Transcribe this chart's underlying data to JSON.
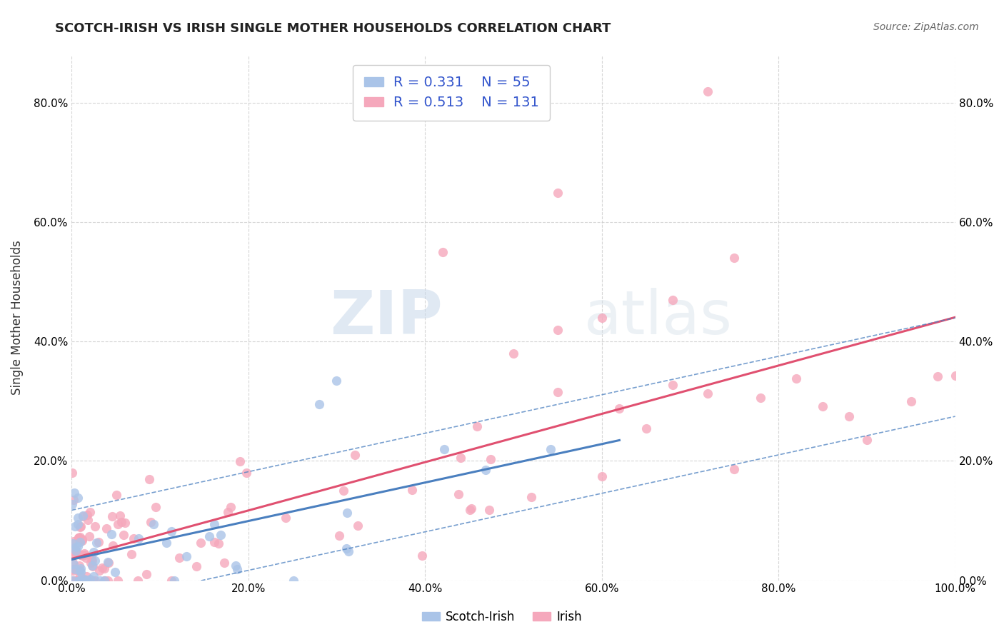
{
  "title": "SCOTCH-IRISH VS IRISH SINGLE MOTHER HOUSEHOLDS CORRELATION CHART",
  "source_text": "Source: ZipAtlas.com",
  "ylabel": "Single Mother Households",
  "legend_scotch_irish": "Scotch-Irish",
  "legend_irish": "Irish",
  "R_scotch": 0.331,
  "N_scotch": 55,
  "R_irish": 0.513,
  "N_irish": 131,
  "scotch_color": "#aac4e8",
  "irish_color": "#f5a8bc",
  "scotch_line_color": "#4a7fbf",
  "irish_line_color": "#e05070",
  "xlim": [
    0.0,
    1.0
  ],
  "ylim": [
    0.0,
    0.88
  ],
  "x_ticks": [
    0.0,
    0.2,
    0.4,
    0.6,
    0.8,
    1.0
  ],
  "x_tick_labels": [
    "0.0%",
    "20.0%",
    "40.0%",
    "60.0%",
    "80.0%",
    "100.0%"
  ],
  "y_ticks": [
    0.0,
    0.2,
    0.4,
    0.6,
    0.8
  ],
  "y_tick_labels": [
    "0.0%",
    "20.0%",
    "40.0%",
    "60.0%",
    "80.0%"
  ],
  "watermark_zip": "ZIP",
  "watermark_atlas": "atlas",
  "background_color": "#ffffff",
  "grid_color": "#cccccc",
  "title_fontsize": 13,
  "source_fontsize": 10,
  "tick_fontsize": 11
}
